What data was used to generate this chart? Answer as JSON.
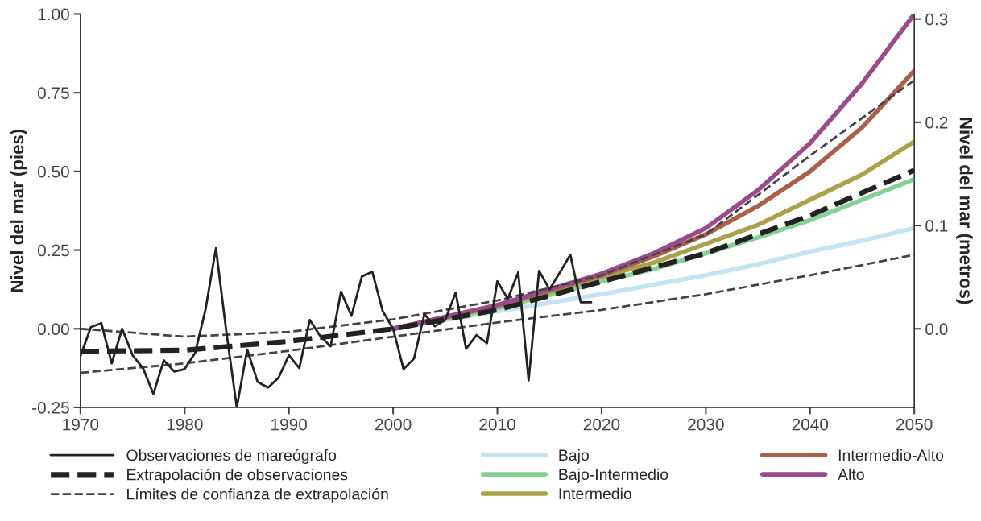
{
  "chart_data": {
    "type": "line",
    "ylabel": "Nivel del mar (pies)",
    "y2label": "Nivel del mar (metros)",
    "xlim": [
      1970,
      2050
    ],
    "xticks": [
      1970,
      1980,
      1990,
      2000,
      2010,
      2020,
      2030,
      2040,
      2050
    ],
    "ylim": [
      -0.25,
      1.0
    ],
    "yticks": [
      {
        "value": -0.25,
        "label": "-0.25"
      },
      {
        "value": 0,
        "label": "0.00"
      },
      {
        "value": 0.25,
        "label": "0.25"
      },
      {
        "value": 0.5,
        "label": "0.50"
      },
      {
        "value": 0.75,
        "label": "0.75"
      },
      {
        "value": 1.0,
        "label": "1.00"
      }
    ],
    "y2lim": [
      -0.0762,
      0.3048
    ],
    "y2ticks": [
      {
        "value": 0,
        "label": "0.0"
      },
      {
        "value": 0.1,
        "label": "0.1"
      },
      {
        "value": 0.2,
        "label": "0.2"
      },
      {
        "value": 0.3,
        "label": "0.3"
      }
    ],
    "grid": false,
    "legend": "bottom",
    "marker": "none",
    "series": [
      {
        "name": "Observaciones de mareógrafo",
        "color": "#222222",
        "line_style": "solid",
        "x": [
          1970,
          1971,
          1972,
          1973,
          1974,
          1975,
          1976,
          1977,
          1978,
          1979,
          1980,
          1981,
          1982,
          1983,
          1984,
          1985,
          1986,
          1987,
          1988,
          1989,
          1990,
          1991,
          1992,
          1993,
          1994,
          1995,
          1996,
          1997,
          1998,
          1999,
          2000,
          2001,
          2002,
          2003,
          2004,
          2005,
          2006,
          2007,
          2008,
          2009,
          2010,
          2011,
          2012,
          2013,
          2014,
          2015,
          2016,
          2017,
          2018,
          2019
        ],
        "values": [
          -0.087,
          0.005,
          0.018,
          -0.11,
          0.0,
          -0.084,
          -0.125,
          -0.207,
          -0.1,
          -0.136,
          -0.128,
          -0.077,
          0.061,
          0.256,
          -0.01,
          -0.25,
          -0.066,
          -0.169,
          -0.187,
          -0.156,
          -0.084,
          -0.125,
          0.028,
          -0.023,
          -0.056,
          0.118,
          0.041,
          0.166,
          0.181,
          0.056,
          0.0,
          -0.128,
          -0.095,
          0.046,
          0.008,
          0.028,
          0.115,
          -0.064,
          -0.02,
          -0.046,
          0.151,
          0.095,
          0.179,
          -0.164,
          0.184,
          0.125,
          0.179,
          0.235,
          0.084,
          0.084
        ]
      },
      {
        "name": "Extrapolación de observaciones",
        "color": "#222222",
        "line_style": "dashed",
        "x": [
          1970,
          1980,
          1990,
          2000,
          2010,
          2020,
          2030,
          2040,
          2050
        ],
        "values": [
          -0.072,
          -0.068,
          -0.04,
          0.0,
          0.06,
          0.15,
          0.24,
          0.36,
          0.504
        ]
      },
      {
        "name": "Límites de confianza de extrapolación",
        "color": "#444444",
        "line_style": "dashed",
        "x": [
          1970,
          1980,
          1990,
          2000,
          2010,
          2020,
          2030,
          2040,
          2050
        ],
        "values": [
          0.0,
          -0.025,
          -0.01,
          0.03,
          0.09,
          0.17,
          0.3,
          0.55,
          0.79
        ]
      },
      {
        "color": "#444444",
        "line_style": "dashed",
        "x": [
          1970,
          1980,
          1990,
          2000,
          2010,
          2020,
          2030,
          2040,
          2050
        ],
        "values": [
          -0.14,
          -0.11,
          -0.07,
          -0.025,
          0.02,
          0.06,
          0.11,
          0.17,
          0.235
        ]
      },
      {
        "name": "Bajo",
        "color": "#c5e4f3",
        "line_style": "solid",
        "x": [
          2000,
          2010,
          2020,
          2025,
          2030,
          2035,
          2040,
          2045,
          2050
        ],
        "values": [
          0.0,
          0.055,
          0.11,
          0.14,
          0.17,
          0.205,
          0.245,
          0.28,
          0.32
        ]
      },
      {
        "name": "Bajo-Intermedio",
        "color": "#86cf95",
        "line_style": "solid",
        "x": [
          2000,
          2010,
          2020,
          2025,
          2030,
          2035,
          2040,
          2045,
          2050
        ],
        "values": [
          0.0,
          0.065,
          0.15,
          0.19,
          0.24,
          0.29,
          0.345,
          0.41,
          0.475
        ]
      },
      {
        "name": "Intermedio",
        "color": "#a9a24a",
        "line_style": "solid",
        "x": [
          2000,
          2010,
          2020,
          2025,
          2030,
          2035,
          2040,
          2045,
          2050
        ],
        "values": [
          0.0,
          0.07,
          0.165,
          0.21,
          0.27,
          0.33,
          0.41,
          0.49,
          0.595
        ]
      },
      {
        "name": "Intermedio-Alto",
        "color": "#a8604a",
        "line_style": "solid",
        "x": [
          2000,
          2010,
          2020,
          2025,
          2030,
          2035,
          2040,
          2045,
          2050
        ],
        "values": [
          0.0,
          0.075,
          0.17,
          0.23,
          0.3,
          0.39,
          0.5,
          0.64,
          0.82
        ]
      },
      {
        "name": "Alto",
        "color": "#9b4a8c",
        "line_style": "solid",
        "x": [
          2000,
          2010,
          2020,
          2025,
          2030,
          2035,
          2040,
          2045,
          2050
        ],
        "values": [
          0.0,
          0.075,
          0.175,
          0.24,
          0.32,
          0.44,
          0.59,
          0.78,
          1.0
        ]
      }
    ]
  }
}
